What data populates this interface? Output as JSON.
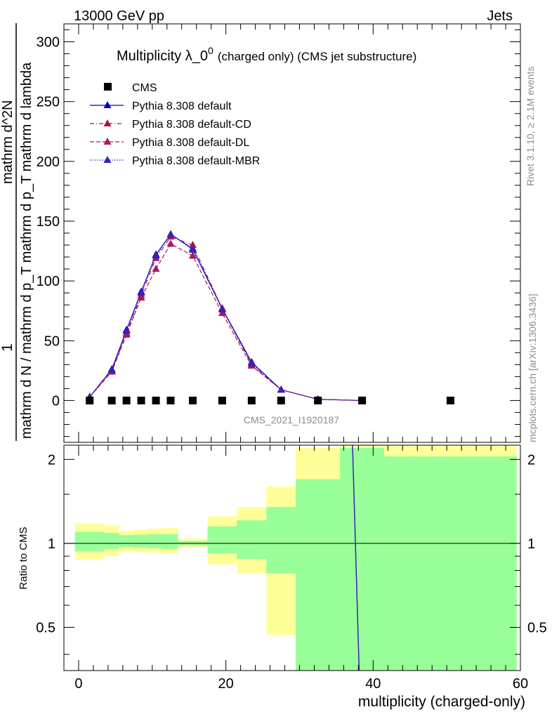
{
  "header": {
    "left": "13000 GeV pp",
    "right": "Jets"
  },
  "side_labels": {
    "rivet": "Rivet 3.1.10, ≥ 2.1M events",
    "mcplots": "mcplots.cern.ch [arXiv:1306.3436]"
  },
  "watermark": "CMS_2021_I1920187",
  "chart_data": [
    {
      "type": "line",
      "title_main": "Multiplicity λ_0",
      "title_sup": "0",
      "title_sub": "(charged only) (CMS jet substructure)",
      "ylabel_numerator": "1",
      "ylabel_denominator": "mathrm d N / mathrm d p_T mathrm d p_T mathrm d lambda",
      "ylabel_right": "mathrm d^2N",
      "xlim": [
        -2,
        60
      ],
      "ylim": [
        -35,
        315
      ],
      "y_ticks": [
        0,
        50,
        100,
        150,
        200,
        250,
        300
      ],
      "x_ticks": [
        0,
        20,
        40,
        60
      ],
      "legend_position": "top-left",
      "series": [
        {
          "name": "CMS",
          "style": "marker-square",
          "color": "#000000",
          "x": [
            1.5,
            4.5,
            6.5,
            8.5,
            10.5,
            12.5,
            15.5,
            19.5,
            23.5,
            27.5,
            32.5,
            38.5,
            50.5
          ],
          "y": [
            0,
            0,
            0,
            0,
            0,
            0,
            0,
            0,
            0,
            0,
            0,
            0,
            0
          ]
        },
        {
          "name": "Pythia 8.308 default",
          "style": "solid",
          "color": "#0000cc",
          "x": [
            1.5,
            4.5,
            6.5,
            8.5,
            10.5,
            12.5,
            15.5,
            19.5,
            23.5,
            27.5,
            32.5,
            38.5
          ],
          "y": [
            3,
            26,
            59,
            91,
            122,
            139,
            127,
            77,
            32,
            9,
            1,
            0
          ]
        },
        {
          "name": "Pythia 8.308 default-CD",
          "style": "dashdot",
          "color": "#a3174f",
          "x": [
            1.5,
            4.5,
            6.5,
            8.5,
            10.5,
            12.5,
            15.5,
            19.5,
            23.5,
            27.5,
            32.5,
            38.5
          ],
          "y": [
            3,
            25,
            56,
            88,
            119,
            137,
            130,
            77,
            30,
            9,
            1,
            0
          ]
        },
        {
          "name": "Pythia 8.308 default-DL",
          "style": "dashed",
          "color": "#b0155a",
          "x": [
            1.5,
            4.5,
            6.5,
            8.5,
            10.5,
            12.5,
            15.5,
            19.5,
            23.5,
            27.5,
            32.5,
            38.5
          ],
          "y": [
            3,
            24,
            55,
            86,
            110,
            131,
            121,
            73,
            29,
            9,
            1,
            0
          ]
        },
        {
          "name": "Pythia 8.308 default-MBR",
          "style": "dotted",
          "color": "#3a22b5",
          "x": [
            1.5,
            4.5,
            6.5,
            8.5,
            10.5,
            12.5,
            15.5,
            19.5,
            23.5,
            27.5,
            32.5,
            38.5
          ],
          "y": [
            3,
            25,
            58,
            90,
            121,
            139,
            126,
            76,
            31,
            9,
            1,
            0
          ]
        }
      ]
    },
    {
      "type": "area",
      "ylabel": "Ratio to CMS",
      "xlabel": "multiplicity (charged-only)",
      "xlim": [
        -2,
        60
      ],
      "ylim": [
        0.35,
        2.25
      ],
      "y_scale": "log",
      "y_ticks": [
        0.5,
        1,
        2
      ],
      "x_ticks": [
        0,
        20,
        40,
        60
      ],
      "reference_line": 1,
      "bands": [
        {
          "x": [
            -0.5,
            3.5
          ],
          "yellow": [
            0.875,
            1.18
          ],
          "green": [
            0.935,
            1.1
          ]
        },
        {
          "x": [
            3.5,
            5.5
          ],
          "yellow": [
            0.905,
            1.16
          ],
          "green": [
            0.955,
            1.09
          ]
        },
        {
          "x": [
            5.5,
            7.5
          ],
          "yellow": [
            0.93,
            1.11
          ],
          "green": [
            0.97,
            1.07
          ]
        },
        {
          "x": [
            7.5,
            9.5
          ],
          "yellow": [
            0.93,
            1.12
          ],
          "green": [
            0.965,
            1.075
          ]
        },
        {
          "x": [
            9.5,
            11.5
          ],
          "yellow": [
            0.925,
            1.13
          ],
          "green": [
            0.96,
            1.08
          ]
        },
        {
          "x": [
            11.5,
            13.5
          ],
          "yellow": [
            0.92,
            1.135
          ],
          "green": [
            0.955,
            1.08
          ]
        },
        {
          "x": [
            13.5,
            17.5
          ],
          "yellow": [
            0.97,
            1.04
          ],
          "green": [
            0.985,
            1.02
          ]
        },
        {
          "x": [
            17.5,
            21.5
          ],
          "yellow": [
            0.84,
            1.25
          ],
          "green": [
            0.92,
            1.15
          ]
        },
        {
          "x": [
            21.5,
            25.5
          ],
          "yellow": [
            0.78,
            1.35
          ],
          "green": [
            0.88,
            1.21
          ]
        },
        {
          "x": [
            25.5,
            29.5
          ],
          "yellow": [
            0.47,
            1.6
          ],
          "green": [
            0.78,
            1.35
          ]
        },
        {
          "x": [
            29.5,
            35.5
          ],
          "yellow": [
            0.35,
            2.2
          ],
          "green": [
            0.35,
            1.7
          ]
        },
        {
          "x": [
            35.5,
            41.5
          ],
          "yellow": [
            0.35,
            2.25
          ],
          "green": [
            0.35,
            2.2
          ]
        },
        {
          "x": [
            41.5,
            59.5
          ],
          "yellow": [
            0.35,
            2.25
          ],
          "green": [
            0.35,
            2.05
          ]
        }
      ],
      "ratio_series": {
        "color": "#3a22b5",
        "points": [
          [
            37.2,
            2.25
          ],
          [
            38.1,
            0.35
          ]
        ]
      }
    }
  ]
}
